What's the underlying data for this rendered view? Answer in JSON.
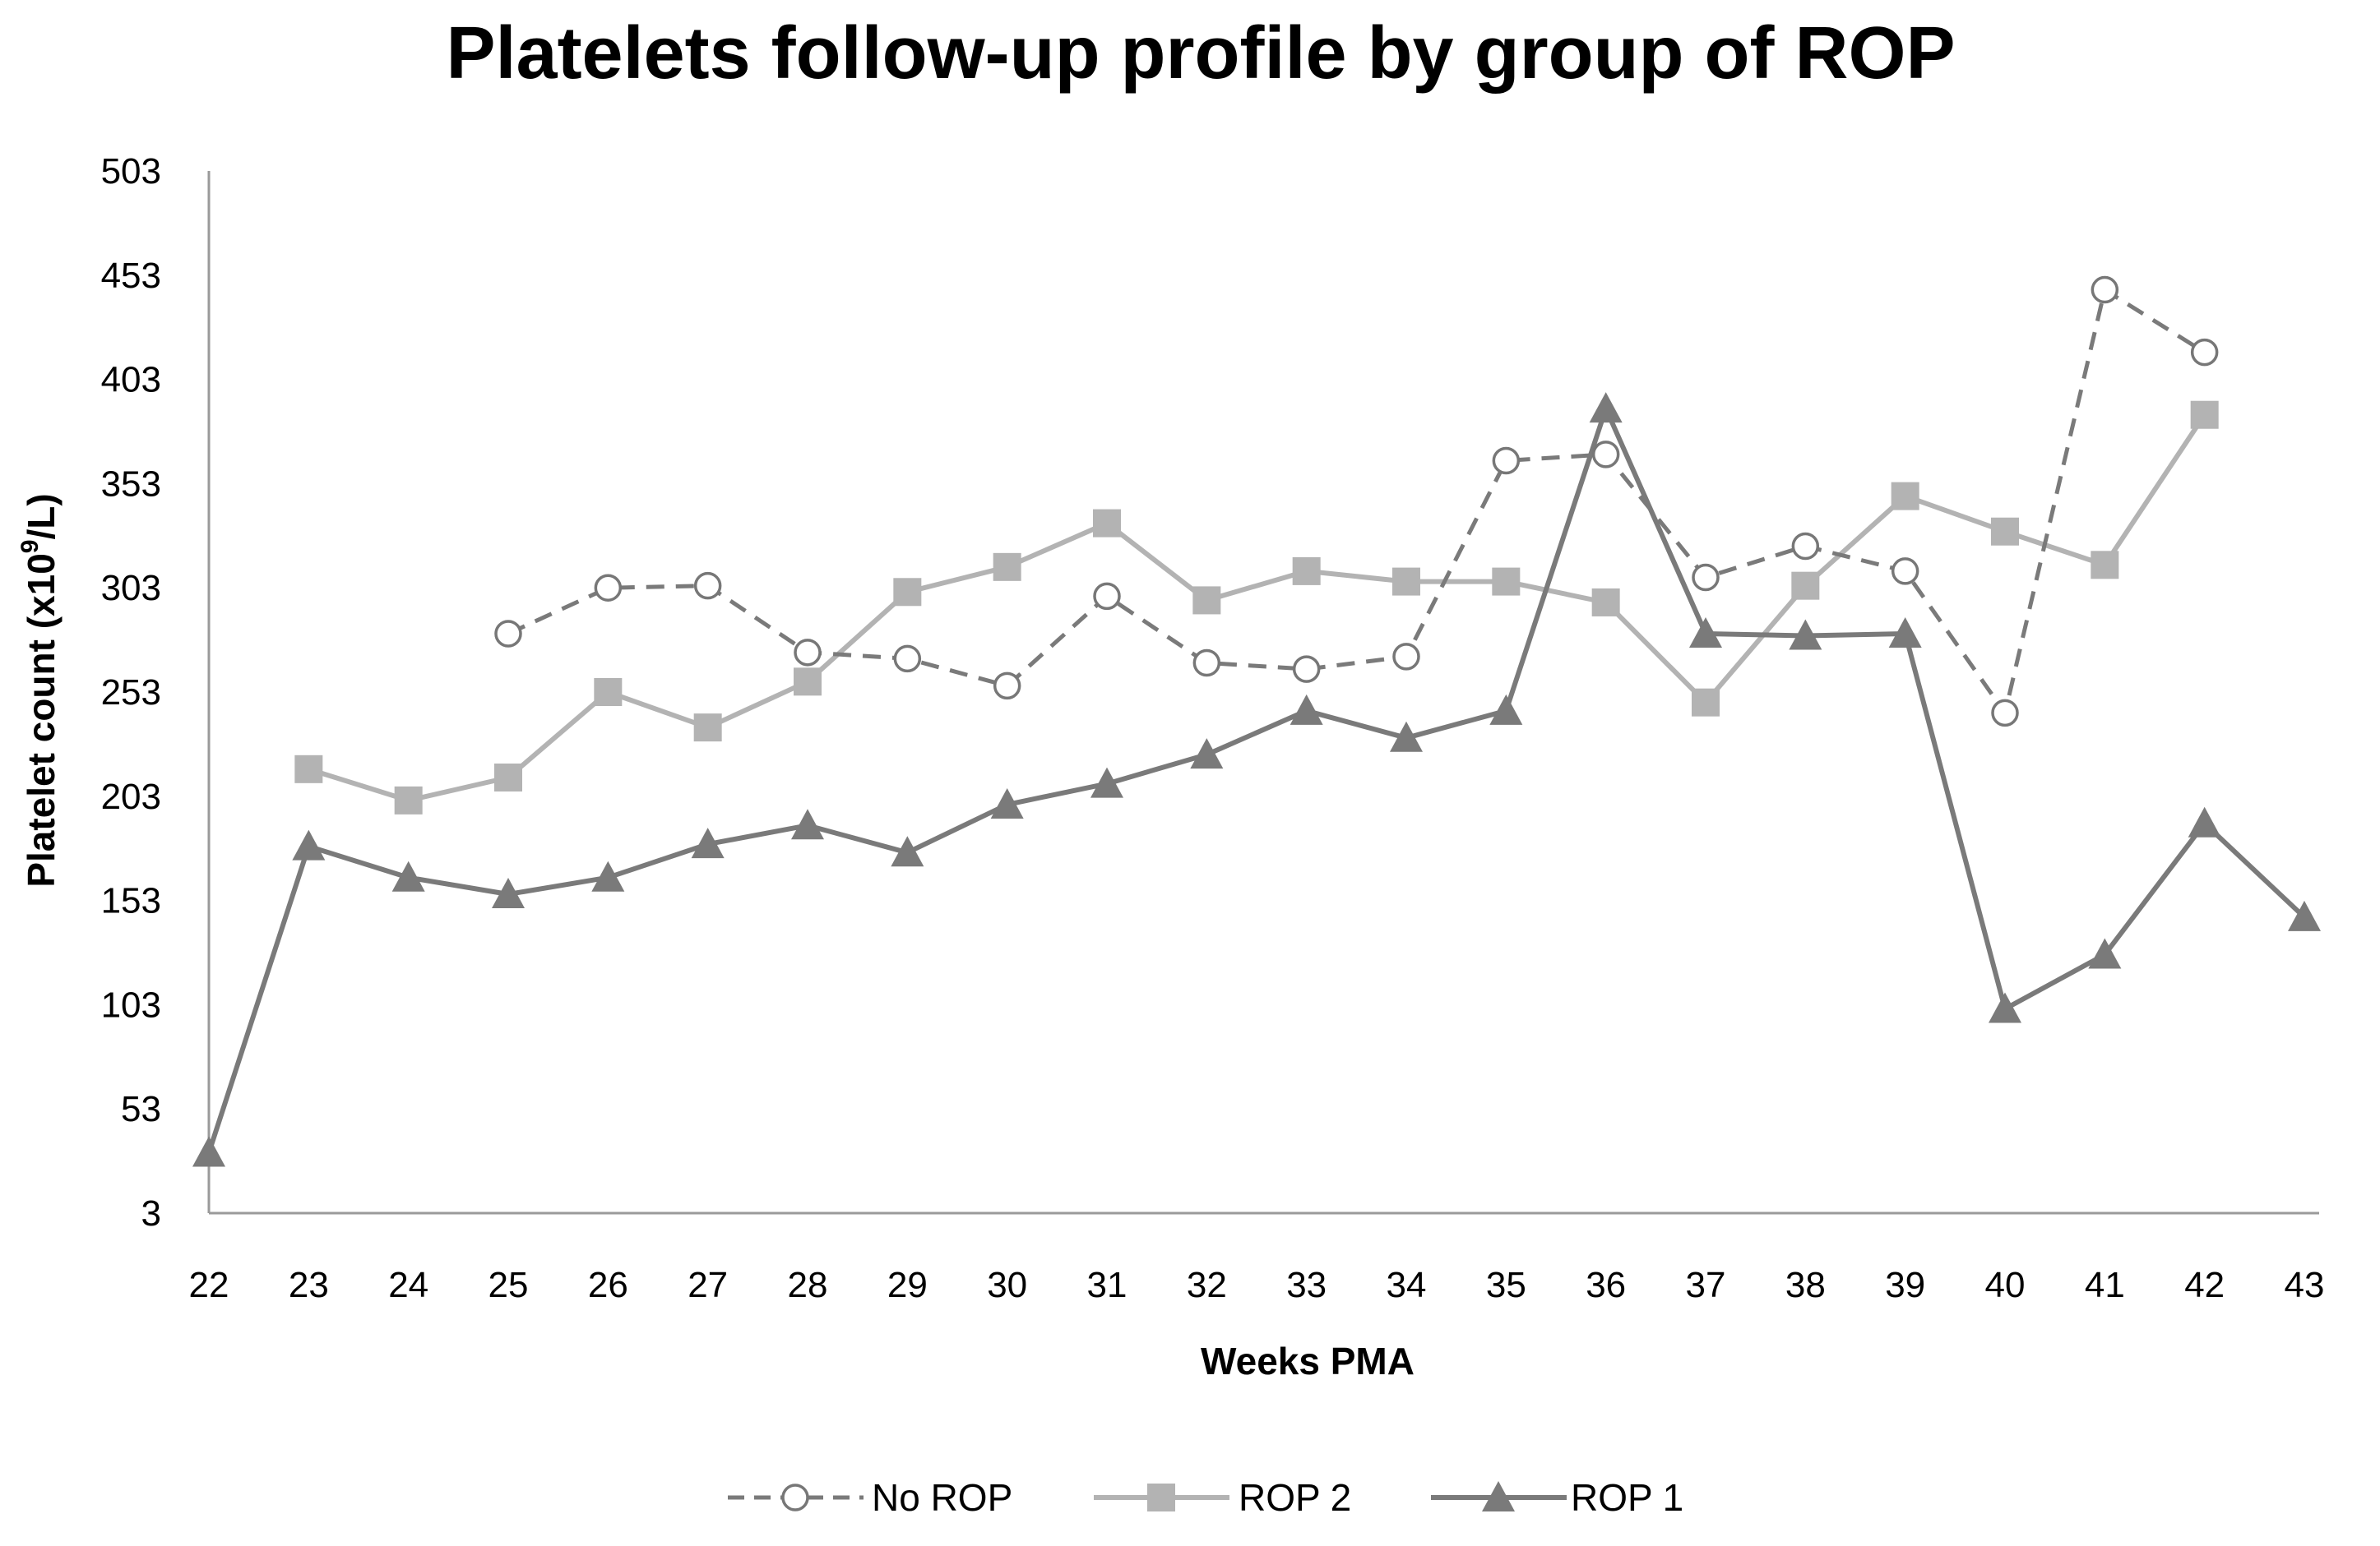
{
  "chart_data": {
    "type": "line",
    "title": "Platelets follow-up profile by group of ROP",
    "xlabel": "Weeks PMA",
    "ylabel_main": "Platelet count  (x10",
    "ylabel_sup": "9",
    "ylabel_end": "/L)",
    "categories": [
      "22",
      "23",
      "24",
      "25",
      "26",
      "27",
      "28",
      "29",
      "30",
      "31",
      "32",
      "33",
      "34",
      "35",
      "36",
      "37",
      "38",
      "39",
      "40",
      "41",
      "42",
      "43"
    ],
    "y_ticks": [
      3,
      53,
      103,
      153,
      203,
      253,
      303,
      353,
      403,
      453,
      503
    ],
    "ylim": [
      3,
      503
    ],
    "grid": false,
    "legend_position": "bottom",
    "series": [
      {
        "name": "No ROP",
        "color": "#7a7a7a",
        "line_style": "dashed",
        "marker": "open-circle",
        "values": [
          null,
          null,
          null,
          281,
          303,
          304,
          272,
          269,
          256,
          299,
          267,
          264,
          270,
          364,
          367,
          308,
          323,
          311,
          243,
          446,
          416,
          null
        ]
      },
      {
        "name": "ROP 2",
        "color": "#b3b3b3",
        "line_style": "solid",
        "marker": "square",
        "values": [
          null,
          216,
          201,
          212,
          253,
          236,
          258,
          301,
          313,
          334,
          297,
          311,
          306,
          306,
          296,
          248,
          304,
          347,
          330,
          314,
          386,
          null
        ]
      },
      {
        "name": "ROP 1",
        "color": "#7a7a7a",
        "line_style": "solid",
        "marker": "triangle",
        "values": [
          32,
          179,
          164,
          156,
          164,
          180,
          189,
          176,
          199,
          209,
          223,
          244,
          231,
          244,
          389,
          281,
          280,
          281,
          101,
          127,
          190,
          145
        ]
      }
    ]
  }
}
